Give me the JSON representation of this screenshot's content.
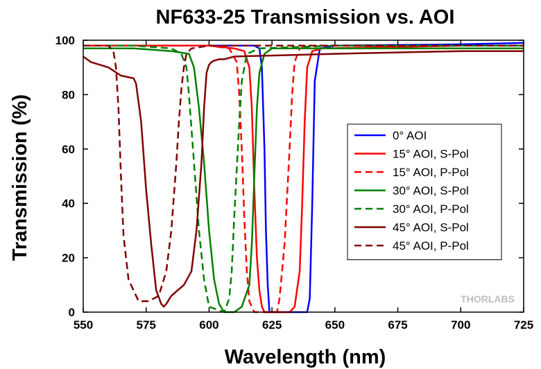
{
  "chart_data": {
    "type": "line",
    "title": "NF633-25 Transmission vs. AOI",
    "xlabel": "Wavelength (nm)",
    "ylabel": "Transmission (%)",
    "xlim": [
      550,
      725
    ],
    "ylim": [
      0,
      100
    ],
    "xticks": [
      550,
      575,
      600,
      625,
      650,
      675,
      700,
      725
    ],
    "yticks": [
      0,
      20,
      40,
      60,
      80,
      100
    ],
    "grid": false,
    "legend_position": "right",
    "watermark": "THORLABS",
    "series": [
      {
        "name": "0° AOI",
        "color": "#0000ff",
        "dash": "solid",
        "x": [
          550,
          600,
          618,
          620,
          621,
          622,
          622.6,
          623.3,
          624,
          628,
          636,
          639,
          640,
          641,
          642,
          644,
          650,
          700,
          725
        ],
        "y": [
          98,
          98,
          98,
          97,
          90,
          60,
          30,
          10,
          0,
          0,
          0,
          0,
          5,
          40,
          85,
          97,
          98,
          98.5,
          99
        ]
      },
      {
        "name": "15° AOI, S-Pol",
        "color": "#ff0000",
        "dash": "solid",
        "x": [
          550,
          600,
          610,
          614,
          616,
          617,
          618,
          619,
          620,
          621,
          622,
          626,
          632,
          634,
          636,
          637,
          638,
          639,
          641,
          645,
          700,
          725
        ],
        "y": [
          98,
          98,
          97,
          96,
          90,
          75,
          45,
          20,
          8,
          2,
          0,
          0,
          0,
          2,
          15,
          40,
          70,
          90,
          96,
          97,
          98,
          98
        ]
      },
      {
        "name": "15° AOI, P-Pol",
        "color": "#ff0000",
        "dash": "dash",
        "x": [
          550,
          600,
          608,
          611,
          612,
          613,
          614,
          615,
          616,
          618,
          623,
          627,
          628,
          630,
          632,
          633,
          634,
          636,
          640,
          700,
          725
        ],
        "y": [
          98,
          98,
          97,
          92,
          80,
          60,
          35,
          15,
          4,
          0,
          0,
          0,
          5,
          25,
          60,
          80,
          92,
          97,
          98,
          98,
          98
        ]
      },
      {
        "name": "30° AOI, S-Pol",
        "color": "#008000",
        "dash": "solid",
        "x": [
          550,
          570,
          585,
          592,
          594,
          596,
          598,
          600,
          602,
          604,
          606,
          610,
          613,
          616,
          617,
          618,
          619,
          620,
          622,
          625,
          650,
          700,
          725
        ],
        "y": [
          97,
          97,
          96,
          95,
          90,
          75,
          55,
          30,
          12,
          3,
          0,
          0,
          2,
          10,
          25,
          50,
          75,
          88,
          95,
          97,
          97,
          97,
          97
        ]
      },
      {
        "name": "30° AOI, P-Pol",
        "color": "#008000",
        "dash": "dash",
        "x": [
          550,
          570,
          585,
          589,
          591,
          592,
          594,
          596,
          598,
          600,
          606,
          608,
          609,
          610,
          612,
          613,
          615,
          620,
          650,
          725
        ],
        "y": [
          98,
          98,
          97,
          95,
          90,
          80,
          55,
          30,
          12,
          2,
          0,
          5,
          15,
          35,
          70,
          85,
          95,
          97,
          98,
          98
        ]
      },
      {
        "name": "45° AOI, S-Pol",
        "color": "#800000",
        "dash": "solid",
        "x": [
          550,
          553,
          560,
          565,
          570,
          571,
          573,
          575,
          577,
          579,
          581,
          582,
          583,
          585,
          590,
          593,
          595,
          597,
          598,
          599,
          600,
          601,
          602,
          604,
          606,
          610,
          650,
          700,
          725
        ],
        "y": [
          94,
          92,
          90,
          87,
          86,
          84,
          70,
          45,
          25,
          8,
          3,
          2,
          3,
          6,
          10,
          15,
          30,
          55,
          75,
          88,
          91,
          92,
          92.5,
          93,
          93,
          94,
          95,
          96,
          96
        ]
      },
      {
        "name": "45° AOI, P-Pol",
        "color": "#800000",
        "dash": "dash",
        "x": [
          550,
          560,
          562,
          563,
          564,
          565,
          566,
          568,
          572,
          576,
          580,
          583,
          585,
          587,
          588,
          589,
          590,
          591,
          593,
          600,
          650,
          725
        ],
        "y": [
          98,
          98,
          96,
          90,
          75,
          50,
          28,
          12,
          4,
          4,
          6,
          15,
          30,
          55,
          70,
          82,
          90,
          95,
          97,
          98,
          98,
          98
        ]
      }
    ]
  }
}
